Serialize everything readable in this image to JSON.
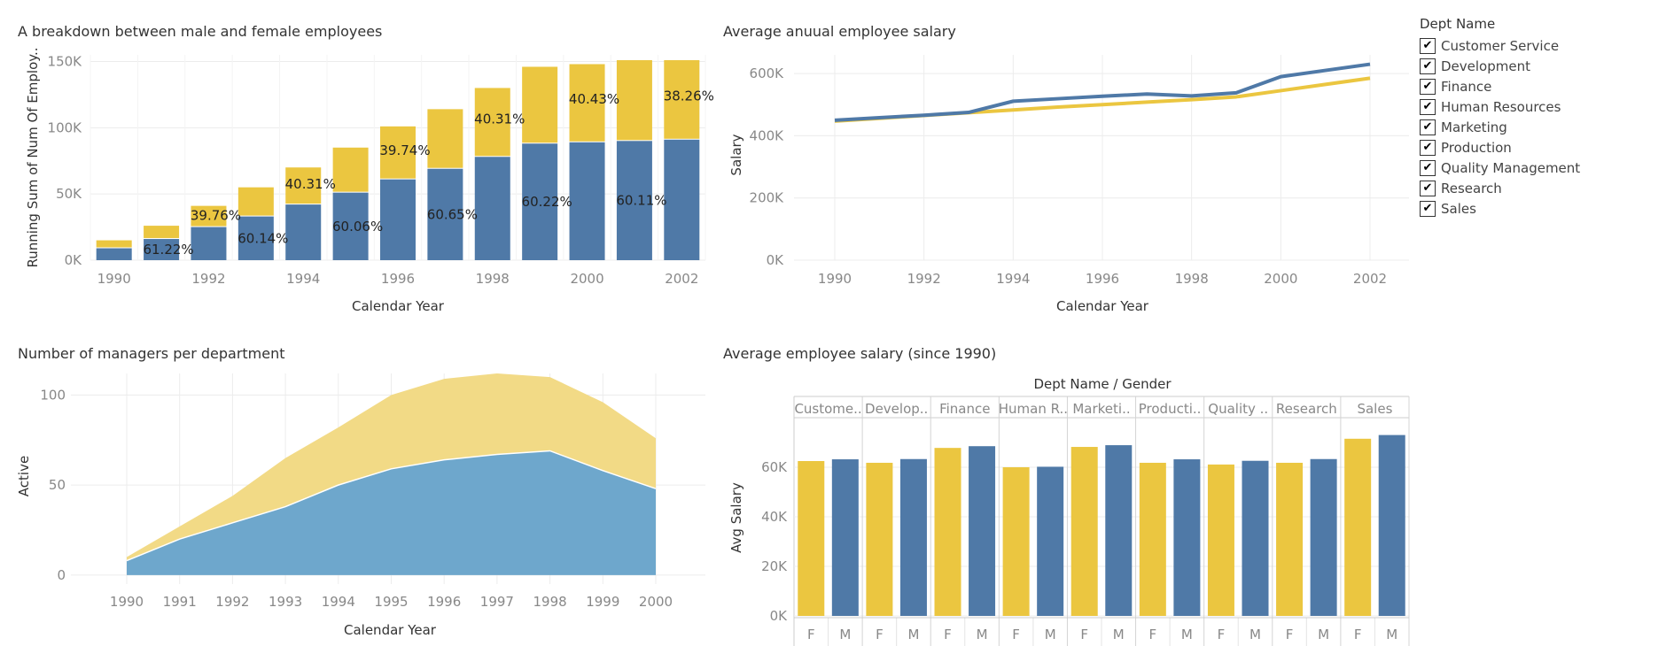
{
  "colors": {
    "female": "#ebc640",
    "male": "#4f79a7",
    "area_top": "#f2da86",
    "area_bottom": "#6ea7cc",
    "grid": "#ececec",
    "axis_text": "#888888"
  },
  "titles": {
    "chart1": "A breakdown between male and female employees",
    "chart2": "Average anuual employee salary",
    "chart3": "Number of managers per department",
    "chart4": "Average employee salary (since 1990)"
  },
  "filter": {
    "title": "Dept Name",
    "items": [
      {
        "label": "Customer Service",
        "checked": true
      },
      {
        "label": "Development",
        "checked": true
      },
      {
        "label": "Finance",
        "checked": true
      },
      {
        "label": "Human Resources",
        "checked": true
      },
      {
        "label": "Marketing",
        "checked": true
      },
      {
        "label": "Production",
        "checked": true
      },
      {
        "label": "Quality Management",
        "checked": true
      },
      {
        "label": "Research",
        "checked": true
      },
      {
        "label": "Sales",
        "checked": true
      }
    ]
  },
  "chart_data": [
    {
      "type": "bar",
      "stacked": true,
      "title": "A breakdown between male and female employees",
      "xlabel": "Calendar Year",
      "ylabel": "Running Sum of Num Of Employ..",
      "categories": [
        "1990",
        "1991",
        "1992",
        "1993",
        "1994",
        "1995",
        "1996",
        "1997",
        "1998",
        "1999",
        "2000",
        "2001",
        "2002"
      ],
      "x_tick_labels": [
        "1990",
        "",
        "1992",
        "",
        "1994",
        "",
        "1996",
        "",
        "1998",
        "",
        "2000",
        "",
        "2002"
      ],
      "series": [
        {
          "values": [
            9000,
            16000,
            25000,
            33000,
            42000,
            51000,
            61000,
            69000,
            78000,
            88000,
            89000,
            90000,
            91000
          ]
        },
        {
          "values": [
            6000,
            10000,
            16000,
            22000,
            28000,
            34000,
            40000,
            45000,
            52000,
            58000,
            59000,
            61000,
            60000
          ]
        }
      ],
      "bar_labels": [
        {
          "index": 1,
          "series": 0,
          "text": "61.22%"
        },
        {
          "index": 2,
          "series": 1,
          "text": "39.76%"
        },
        {
          "index": 3,
          "series": 0,
          "text": "60.14%"
        },
        {
          "index": 4,
          "series": 1,
          "text": "40.31%"
        },
        {
          "index": 5,
          "series": 0,
          "text": "60.06%"
        },
        {
          "index": 6,
          "series": 1,
          "text": "39.74%"
        },
        {
          "index": 7,
          "series": 0,
          "text": "60.65%"
        },
        {
          "index": 8,
          "series": 1,
          "text": "40.31%"
        },
        {
          "index": 9,
          "series": 0,
          "text": "60.22%"
        },
        {
          "index": 10,
          "series": 1,
          "text": "40.43%"
        },
        {
          "index": 11,
          "series": 0,
          "text": "60.11%"
        },
        {
          "index": 12,
          "series": 1,
          "text": "38.26%"
        }
      ],
      "y_ticks": [
        0,
        50000,
        100000,
        150000
      ],
      "y_tick_labels": [
        "0K",
        "50K",
        "100K",
        "150K"
      ],
      "ylim": [
        0,
        155000
      ]
    },
    {
      "type": "line",
      "title": "Average anuual employee salary",
      "xlabel": "Calendar Year",
      "ylabel": "Salary",
      "x": [
        1990,
        1991,
        1992,
        1993,
        1994,
        1995,
        1996,
        1997,
        1998,
        1999,
        2000,
        2001,
        2002
      ],
      "x_ticks": [
        1990,
        1992,
        1994,
        1996,
        1998,
        2000,
        2002
      ],
      "series": [
        {
          "values": [
            447000,
            456000,
            465000,
            474000,
            483000,
            492000,
            500000,
            508000,
            516000,
            525000,
            545000,
            565000,
            585000
          ]
        },
        {
          "values": [
            450000,
            458000,
            466000,
            475000,
            511000,
            519000,
            527000,
            534000,
            528000,
            538000,
            590000,
            610000,
            630000
          ]
        }
      ],
      "y_ticks": [
        0,
        200000,
        400000,
        600000
      ],
      "y_tick_labels": [
        "0K",
        "200K",
        "400K",
        "600K"
      ],
      "ylim": [
        0,
        660000
      ]
    },
    {
      "type": "area",
      "stacked": true,
      "title": "Number of managers per department",
      "xlabel": "Calendar Year",
      "ylabel": "Active",
      "categories": [
        "1990",
        "1991",
        "1992",
        "1993",
        "1994",
        "1995",
        "1996",
        "1997",
        "1998",
        "1999",
        "2000"
      ],
      "series": [
        {
          "values": [
            8,
            20,
            29,
            38,
            50,
            59,
            64,
            67,
            69,
            58,
            48
          ]
        },
        {
          "values": [
            2,
            7,
            15,
            27,
            32,
            41,
            45,
            45,
            41,
            38,
            28
          ]
        }
      ],
      "y_ticks": [
        0,
        50,
        100
      ],
      "ylim": [
        -5,
        112
      ]
    },
    {
      "type": "bar",
      "title": "Average employee salary (since 1990)",
      "header": "Dept Name  /  Gender",
      "ylabel": "Avg Salary",
      "departments": [
        "Custome..",
        "Develop..",
        "Finance",
        "Human R..",
        "Marketi..",
        "Producti..",
        "Quality ..",
        "Research",
        "Sales"
      ],
      "genders": [
        "F",
        "M"
      ],
      "values_F": [
        62500,
        61800,
        67800,
        60000,
        68200,
        61800,
        61100,
        61800,
        71500
      ],
      "values_M": [
        63200,
        63300,
        68500,
        60200,
        68900,
        63200,
        62600,
        63300,
        73000
      ],
      "y_ticks": [
        0,
        20000,
        40000,
        60000
      ],
      "y_tick_labels": [
        "0K",
        "20K",
        "40K",
        "60K"
      ],
      "ylim": [
        0,
        80000
      ]
    }
  ]
}
